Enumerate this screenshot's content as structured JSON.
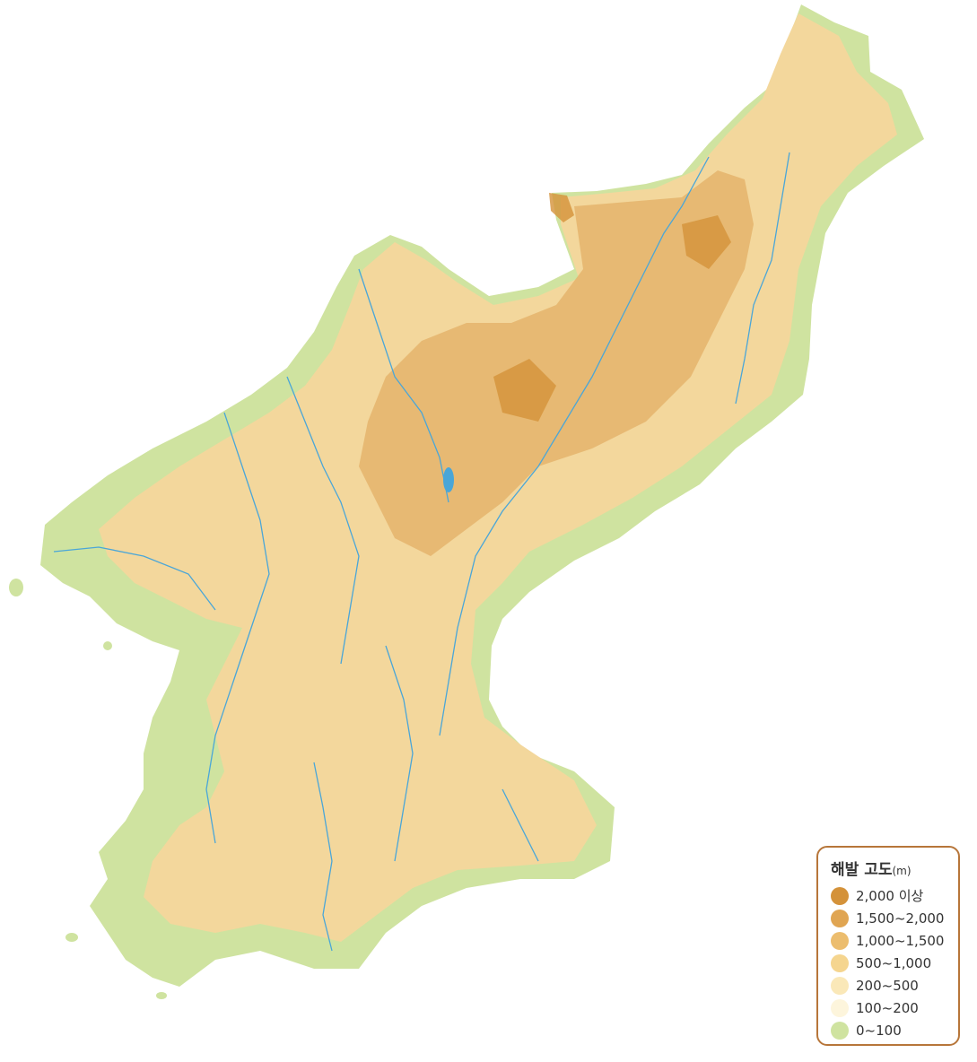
{
  "map": {
    "land_base_color": "#f3d79c",
    "lowland_color": "#cfe3a0",
    "highland_color": "#d9a25a",
    "river_color": "#4aa6d8"
  },
  "legend": {
    "title": "해발 고도",
    "unit": "(m)",
    "items": [
      {
        "label": "2,000 이상",
        "color": "#d4923a"
      },
      {
        "label": "1,500~2,000",
        "color": "#e0a552"
      },
      {
        "label": "1,000~1,500",
        "color": "#ecbd6e"
      },
      {
        "label": "500~1,000",
        "color": "#f5d58f"
      },
      {
        "label": "200~500",
        "color": "#fae8b8"
      },
      {
        "label": "100~200",
        "color": "#fdf5dc"
      },
      {
        "label": "0~100",
        "color": "#cfe3a0"
      }
    ]
  }
}
